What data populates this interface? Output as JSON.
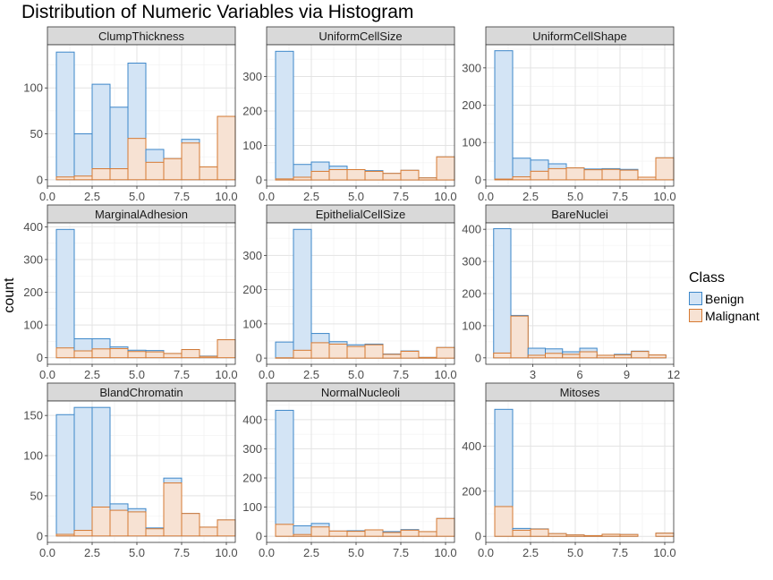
{
  "chart_data": {
    "type": "histogram",
    "title": "Distribution of Numeric Variables via Histogram",
    "ylabel": "count",
    "legend": {
      "title": "Class",
      "placement": "right",
      "entries": [
        {
          "name": "Benign",
          "fill": "#d3e4f5",
          "stroke": "#3d87c9"
        },
        {
          "name": "Malignant",
          "fill": "#f7e2d3",
          "stroke": "#d67a33"
        }
      ]
    },
    "panels": [
      {
        "name": "ClumpThickness",
        "xlim": [
          0,
          10.5
        ],
        "xticks": [
          0,
          2.5,
          5,
          7.5,
          10
        ],
        "xtick_labels": [
          "0.0",
          "2.5",
          "5.0",
          "7.5",
          "10.0"
        ],
        "ylim": [
          -7,
          147
        ],
        "yticks": [
          0,
          50,
          100
        ],
        "bin_start": 0.5,
        "bin_width": 1,
        "benign_total": [
          139,
          50,
          104,
          79,
          127,
          33,
          23,
          44,
          14,
          69
        ],
        "malignant": [
          3,
          4,
          12,
          12,
          45,
          19,
          23,
          40,
          14,
          69
        ]
      },
      {
        "name": "UniformCellSize",
        "xlim": [
          0,
          10.5
        ],
        "xticks": [
          0,
          2.5,
          5,
          7.5,
          10
        ],
        "xtick_labels": [
          "0.0",
          "2.5",
          "5.0",
          "7.5",
          "10.0"
        ],
        "ylim": [
          -18,
          392
        ],
        "yticks": [
          0,
          100,
          200,
          300
        ],
        "bin_start": 0.5,
        "bin_width": 1,
        "benign_total": [
          373,
          45,
          52,
          40,
          30,
          27,
          19,
          28,
          6,
          67
        ],
        "malignant": [
          3,
          8,
          25,
          30,
          30,
          25,
          19,
          28,
          6,
          67
        ]
      },
      {
        "name": "UniformCellShape",
        "xlim": [
          0,
          10.5
        ],
        "xticks": [
          0,
          2.5,
          5,
          7.5,
          10
        ],
        "xtick_labels": [
          "0.0",
          "2.5",
          "5.0",
          "7.5",
          "10.0"
        ],
        "ylim": [
          -17,
          362
        ],
        "yticks": [
          0,
          100,
          200,
          300
        ],
        "bin_start": 0.5,
        "bin_width": 1,
        "benign_total": [
          346,
          58,
          53,
          43,
          32,
          29,
          30,
          28,
          7,
          59
        ],
        "malignant": [
          2,
          8,
          23,
          30,
          32,
          27,
          28,
          26,
          7,
          59
        ]
      },
      {
        "name": "MarginalAdhesion",
        "xlim": [
          0,
          10.5
        ],
        "xticks": [
          0,
          2.5,
          5,
          7.5,
          10
        ],
        "xtick_labels": [
          "0.0",
          "2.5",
          "5.0",
          "7.5",
          "10.0"
        ],
        "ylim": [
          -20,
          412
        ],
        "yticks": [
          0,
          100,
          200,
          300,
          400
        ],
        "bin_start": 0.5,
        "bin_width": 1,
        "benign_total": [
          392,
          58,
          58,
          33,
          23,
          22,
          13,
          25,
          5,
          55
        ],
        "malignant": [
          30,
          21,
          27,
          28,
          19,
          18,
          13,
          25,
          4,
          55
        ]
      },
      {
        "name": "EpithelialCellSize",
        "xlim": [
          0,
          10.5
        ],
        "xticks": [
          0,
          2.5,
          5,
          7.5,
          10
        ],
        "xtick_labels": [
          "0.0",
          "2.5",
          "5.0",
          "7.5",
          "10.0"
        ],
        "ylim": [
          -18,
          395
        ],
        "yticks": [
          0,
          100,
          200,
          300
        ],
        "bin_start": 0.5,
        "bin_width": 1,
        "benign_total": [
          47,
          376,
          72,
          48,
          39,
          41,
          12,
          21,
          2,
          31
        ],
        "malignant": [
          1,
          23,
          45,
          41,
          34,
          39,
          11,
          20,
          2,
          31
        ]
      },
      {
        "name": "BareNuclei",
        "xlim": [
          0,
          12
        ],
        "xticks": [
          3,
          6,
          9,
          12
        ],
        "xtick_labels": [
          "3",
          "6",
          "9",
          "12"
        ],
        "ylim": [
          -20,
          420
        ],
        "yticks": [
          0,
          100,
          200,
          300,
          400
        ],
        "bin_start": 0.5,
        "bin_width": 1.1,
        "benign_total": [
          402,
          132,
          30,
          28,
          19,
          30,
          8,
          11,
          21,
          9
        ],
        "malignant": [
          15,
          130,
          8,
          14,
          11,
          19,
          8,
          9,
          20,
          9
        ]
      },
      {
        "name": "BlandChromatin",
        "xlim": [
          0,
          10.5
        ],
        "xticks": [
          0,
          2.5,
          5,
          7.5,
          10
        ],
        "xtick_labels": [
          "0.0",
          "2.5",
          "5.0",
          "7.5",
          "10.0"
        ],
        "ylim": [
          -8,
          168
        ],
        "yticks": [
          0,
          50,
          100,
          150
        ],
        "bin_start": 0.5,
        "bin_width": 1,
        "benign_total": [
          151,
          160,
          160,
          40,
          34,
          10,
          72,
          28,
          11,
          20
        ],
        "malignant": [
          2,
          7,
          36,
          32,
          30,
          9,
          66,
          28,
          11,
          20
        ]
      },
      {
        "name": "NormalNucleoli",
        "xlim": [
          0,
          10.5
        ],
        "xticks": [
          0,
          2.5,
          5,
          7.5,
          10
        ],
        "xtick_labels": [
          "0.0",
          "2.5",
          "5.0",
          "7.5",
          "10.0"
        ],
        "ylim": [
          -21,
          464
        ],
        "yticks": [
          0,
          100,
          200,
          300,
          400
        ],
        "bin_start": 0.5,
        "bin_width": 1,
        "benign_total": [
          432,
          36,
          44,
          18,
          19,
          22,
          16,
          23,
          16,
          61
        ],
        "malignant": [
          41,
          6,
          32,
          18,
          17,
          22,
          13,
          21,
          16,
          61
        ]
      },
      {
        "name": "Mitoses",
        "xlim": [
          0,
          10.5
        ],
        "xticks": [
          0,
          2.5,
          5,
          7.5,
          10
        ],
        "xtick_labels": [
          "0.0",
          "2.5",
          "5.0",
          "7.5",
          "10.0"
        ],
        "ylim": [
          -27,
          600
        ],
        "yticks": [
          0,
          200,
          400
        ],
        "bin_start": 0.5,
        "bin_width": 1,
        "benign_total": [
          563,
          35,
          33,
          12,
          6,
          3,
          9,
          8,
          0,
          14
        ],
        "malignant": [
          132,
          27,
          32,
          12,
          6,
          3,
          9,
          8,
          0,
          14
        ]
      }
    ]
  }
}
